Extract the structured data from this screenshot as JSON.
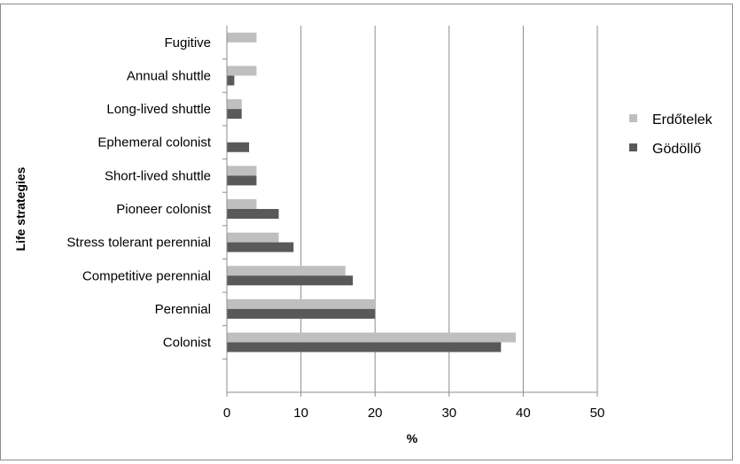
{
  "chart_data": {
    "type": "bar",
    "orientation": "horizontal",
    "categories": [
      "Fugitive",
      "Annual shuttle",
      "Long-lived shuttle",
      "Ephemeral colonist",
      "Short-lived shuttle",
      "Pioneer colonist",
      "Stress tolerant perennial",
      "Competitive perennial",
      "Perennial",
      "Colonist"
    ],
    "series": [
      {
        "name": "Erdőtelek",
        "color": "#bfbfbf",
        "values": [
          4,
          4,
          2,
          0,
          4,
          4,
          7,
          16,
          20,
          39
        ]
      },
      {
        "name": "Gödöllő",
        "color": "#595959",
        "values": [
          0,
          1,
          2,
          3,
          4,
          7,
          9,
          17,
          20,
          37
        ]
      }
    ],
    "xlabel": "%",
    "ylabel": "Life strategies",
    "xlim": [
      0,
      50
    ],
    "xticks": [
      "0",
      "10",
      "20",
      "30",
      "40",
      "50"
    ],
    "grid": "vertical",
    "legend_position": "right"
  }
}
